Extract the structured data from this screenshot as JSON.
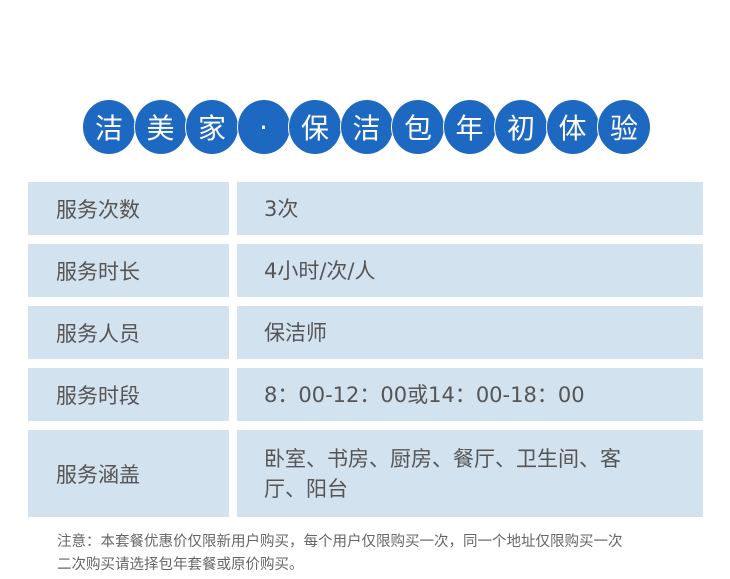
{
  "title_chars": [
    "洁",
    "美",
    "家",
    "·",
    "保",
    "洁",
    "包",
    "年",
    "初",
    "体",
    "验"
  ],
  "rows": [
    {
      "label": "服务次数",
      "value": "3次"
    },
    {
      "label": "服务时长",
      "value": "4小时/次/人"
    },
    {
      "label": "服务人员",
      "value": "保洁师"
    },
    {
      "label": "服务时段",
      "value": "8：00-12：00或14：00-18：00"
    },
    {
      "label": "服务涵盖",
      "value": "卧室、书房、厨房、餐厅、卫生间、客厅、阳台"
    }
  ],
  "note": {
    "line1": "注意：本套餐优惠价仅限新用户购买，每个用户仅限购买一次，同一个地址仅限购买一次",
    "line2": "二次购买请选择包年套餐或原价购买。"
  },
  "colors": {
    "circle": "#1d68c0",
    "cell": "#d3e2ef"
  }
}
